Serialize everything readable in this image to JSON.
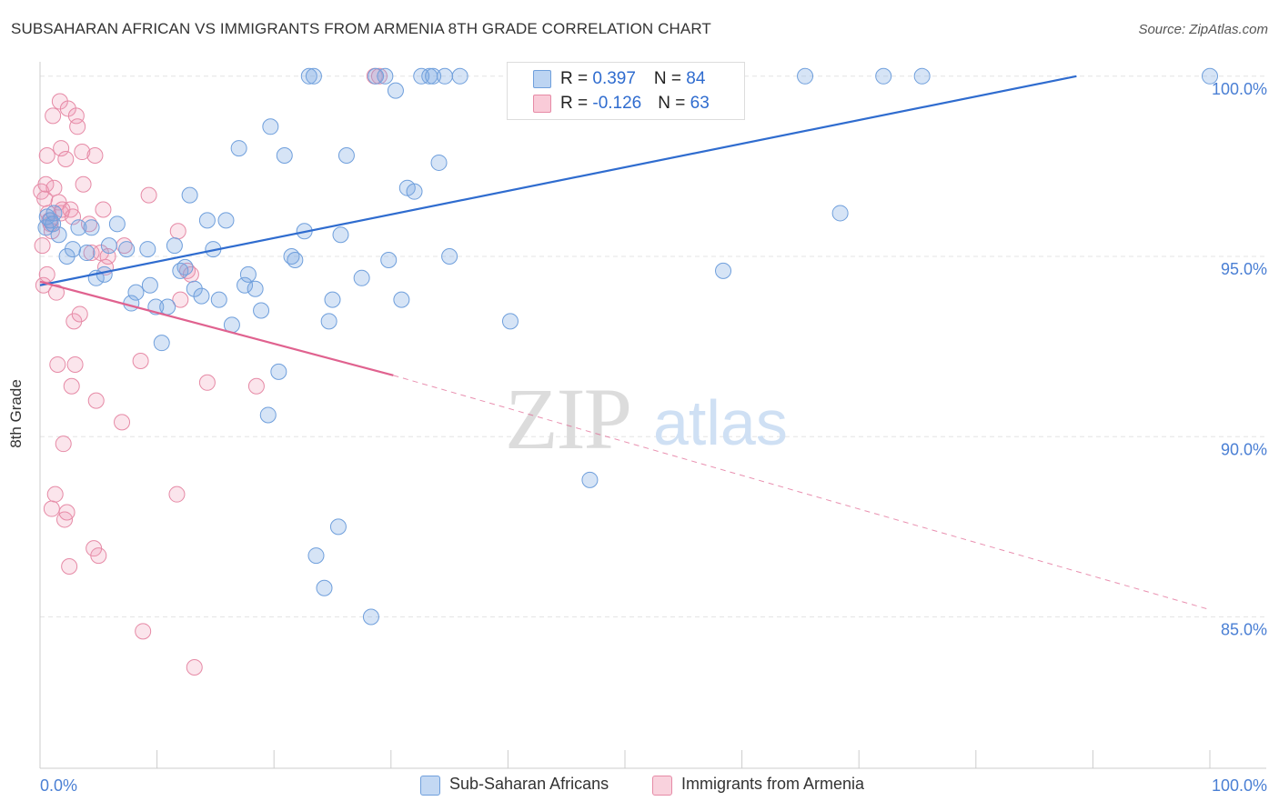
{
  "title": "SUBSAHARAN AFRICAN VS IMMIGRANTS FROM ARMENIA 8TH GRADE CORRELATION CHART",
  "source": "Source: ZipAtlas.com",
  "watermark": {
    "zip": "ZIP",
    "atlas": "atlas"
  },
  "legend": {
    "rows": [
      {
        "r_label": "R = ",
        "r_value": "0.397",
        "n_label": "N = ",
        "n_value": "84",
        "color": "#a9c7ee"
      },
      {
        "r_label": "R = ",
        "r_value": "-0.126",
        "n_label": "N = ",
        "n_value": "63",
        "color": "#f4b6c8"
      }
    ]
  },
  "bottom_legend": [
    {
      "label": "Sub-Saharan Africans",
      "color": "#a9c7ee",
      "border": "#6f9fdc"
    },
    {
      "label": "Immigrants from Armenia",
      "color": "#f7c6d4",
      "border": "#e68aa6"
    }
  ],
  "colors": {
    "blue_fill": "rgba(120,165,225,0.30)",
    "blue_stroke": "#6f9fdc",
    "blue_line": "#2f6ccf",
    "pink_fill": "rgba(240,150,180,0.25)",
    "pink_stroke": "#e68aa6",
    "pink_line": "#e0628f",
    "grid": "#e4e4e4",
    "tick_label": "#4a7fd4"
  },
  "chart_data": {
    "type": "scatter",
    "ylabel": "8th Grade",
    "xlim": [
      0,
      100
    ],
    "ylim": [
      80.8,
      100.6
    ],
    "x_tick_labels": [
      {
        "value": 0,
        "label": "0.0%"
      },
      {
        "value": 100,
        "label": "100.0%"
      }
    ],
    "y_ticks": [
      {
        "value": 100,
        "label": "100.0%"
      },
      {
        "value": 95,
        "label": "95.0%"
      },
      {
        "value": 90,
        "label": "90.0%"
      },
      {
        "value": 85,
        "label": "85.0%"
      }
    ],
    "grid": true,
    "legend_position": "top-center",
    "series": [
      {
        "name": "Sub-Saharan Africans",
        "color": "blue",
        "points": [
          [
            0.5,
            95.8
          ],
          [
            0.6,
            96.1
          ],
          [
            0.9,
            96.0
          ],
          [
            1.1,
            95.9
          ],
          [
            1.2,
            96.2
          ],
          [
            1.6,
            95.6
          ],
          [
            2.3,
            95.0
          ],
          [
            2.8,
            95.2
          ],
          [
            3.3,
            95.8
          ],
          [
            4.0,
            95.1
          ],
          [
            4.4,
            95.8
          ],
          [
            4.8,
            94.4
          ],
          [
            5.5,
            94.5
          ],
          [
            5.9,
            95.3
          ],
          [
            6.6,
            95.9
          ],
          [
            7.4,
            95.2
          ],
          [
            7.8,
            93.7
          ],
          [
            8.2,
            94.0
          ],
          [
            9.2,
            95.2
          ],
          [
            9.4,
            94.2
          ],
          [
            9.9,
            93.6
          ],
          [
            10.4,
            92.6
          ],
          [
            10.9,
            93.6
          ],
          [
            11.5,
            95.3
          ],
          [
            12.0,
            94.6
          ],
          [
            12.4,
            94.7
          ],
          [
            12.8,
            96.7
          ],
          [
            13.2,
            94.1
          ],
          [
            13.8,
            93.9
          ],
          [
            14.3,
            96.0
          ],
          [
            14.8,
            95.2
          ],
          [
            15.3,
            93.8
          ],
          [
            15.9,
            96.0
          ],
          [
            16.4,
            93.1
          ],
          [
            17.0,
            98.0
          ],
          [
            17.5,
            94.2
          ],
          [
            17.8,
            94.5
          ],
          [
            18.4,
            94.1
          ],
          [
            18.9,
            93.5
          ],
          [
            19.5,
            90.6
          ],
          [
            19.7,
            98.6
          ],
          [
            20.4,
            91.8
          ],
          [
            20.9,
            97.8
          ],
          [
            21.5,
            95.0
          ],
          [
            21.8,
            94.9
          ],
          [
            22.6,
            95.7
          ],
          [
            23.0,
            100.0
          ],
          [
            23.4,
            100.0
          ],
          [
            23.6,
            86.7
          ],
          [
            24.3,
            85.8
          ],
          [
            24.7,
            93.2
          ],
          [
            25.0,
            93.8
          ],
          [
            25.5,
            87.5
          ],
          [
            25.7,
            95.6
          ],
          [
            26.2,
            97.8
          ],
          [
            27.5,
            94.4
          ],
          [
            28.3,
            85.0
          ],
          [
            28.7,
            100.0
          ],
          [
            29.5,
            100.0
          ],
          [
            29.8,
            94.9
          ],
          [
            30.4,
            99.6
          ],
          [
            30.9,
            93.8
          ],
          [
            31.4,
            96.9
          ],
          [
            32.0,
            96.8
          ],
          [
            32.6,
            100.0
          ],
          [
            33.3,
            100.0
          ],
          [
            33.6,
            100.0
          ],
          [
            34.1,
            97.6
          ],
          [
            34.6,
            100.0
          ],
          [
            35.0,
            95.0
          ],
          [
            35.9,
            100.0
          ],
          [
            40.6,
            100.0
          ],
          [
            40.9,
            99.1
          ],
          [
            40.2,
            93.2
          ],
          [
            41.2,
            99.5
          ],
          [
            42.6,
            100.0
          ],
          [
            45.2,
            99.1
          ],
          [
            47.0,
            88.8
          ],
          [
            58.4,
            94.6
          ],
          [
            65.4,
            100.0
          ],
          [
            68.4,
            96.2
          ],
          [
            72.1,
            100.0
          ],
          [
            75.4,
            100.0
          ],
          [
            100.0,
            100.0
          ]
        ],
        "trend": {
          "x": [
            0,
            88.6
          ],
          "y": [
            94.2,
            100.0
          ]
        }
      },
      {
        "name": "Immigrants from Armenia",
        "color": "pink",
        "points": [
          [
            0.1,
            96.8
          ],
          [
            0.2,
            95.3
          ],
          [
            0.3,
            94.2
          ],
          [
            0.4,
            96.6
          ],
          [
            0.5,
            97.0
          ],
          [
            0.6,
            97.8
          ],
          [
            0.6,
            94.5
          ],
          [
            0.7,
            96.2
          ],
          [
            0.8,
            96.0
          ],
          [
            0.9,
            95.9
          ],
          [
            1.0,
            95.7
          ],
          [
            1.0,
            88.0
          ],
          [
            1.1,
            98.9
          ],
          [
            1.2,
            96.9
          ],
          [
            1.3,
            88.4
          ],
          [
            1.4,
            94.0
          ],
          [
            1.5,
            92.0
          ],
          [
            1.6,
            96.5
          ],
          [
            1.7,
            99.3
          ],
          [
            1.8,
            96.2
          ],
          [
            1.8,
            98.0
          ],
          [
            1.9,
            96.3
          ],
          [
            2.0,
            89.8
          ],
          [
            2.1,
            87.7
          ],
          [
            2.2,
            97.7
          ],
          [
            2.3,
            87.9
          ],
          [
            2.4,
            99.1
          ],
          [
            2.5,
            86.4
          ],
          [
            2.6,
            96.3
          ],
          [
            2.7,
            91.4
          ],
          [
            2.8,
            96.1
          ],
          [
            2.9,
            93.2
          ],
          [
            3.0,
            92.0
          ],
          [
            3.1,
            98.9
          ],
          [
            3.2,
            98.6
          ],
          [
            3.4,
            93.4
          ],
          [
            3.6,
            97.9
          ],
          [
            3.7,
            97.0
          ],
          [
            4.2,
            95.9
          ],
          [
            4.4,
            95.1
          ],
          [
            4.6,
            86.9
          ],
          [
            4.7,
            97.8
          ],
          [
            4.8,
            91.0
          ],
          [
            5.0,
            86.7
          ],
          [
            5.2,
            95.1
          ],
          [
            5.4,
            96.3
          ],
          [
            5.6,
            94.7
          ],
          [
            5.8,
            95.0
          ],
          [
            7.0,
            90.4
          ],
          [
            7.2,
            95.3
          ],
          [
            8.6,
            92.1
          ],
          [
            8.8,
            84.6
          ],
          [
            9.3,
            96.7
          ],
          [
            11.7,
            88.4
          ],
          [
            11.8,
            95.7
          ],
          [
            12.0,
            93.8
          ],
          [
            12.6,
            94.6
          ],
          [
            12.9,
            94.5
          ],
          [
            13.2,
            83.6
          ],
          [
            14.3,
            91.5
          ],
          [
            18.5,
            91.4
          ],
          [
            28.6,
            100.0
          ],
          [
            29.0,
            100.0
          ]
        ],
        "trend": {
          "x": [
            0,
            30.2
          ],
          "y": [
            94.3,
            91.7
          ]
        },
        "trend_extension": {
          "x": [
            30.2,
            100
          ],
          "y": [
            91.7,
            85.2
          ]
        }
      }
    ]
  }
}
